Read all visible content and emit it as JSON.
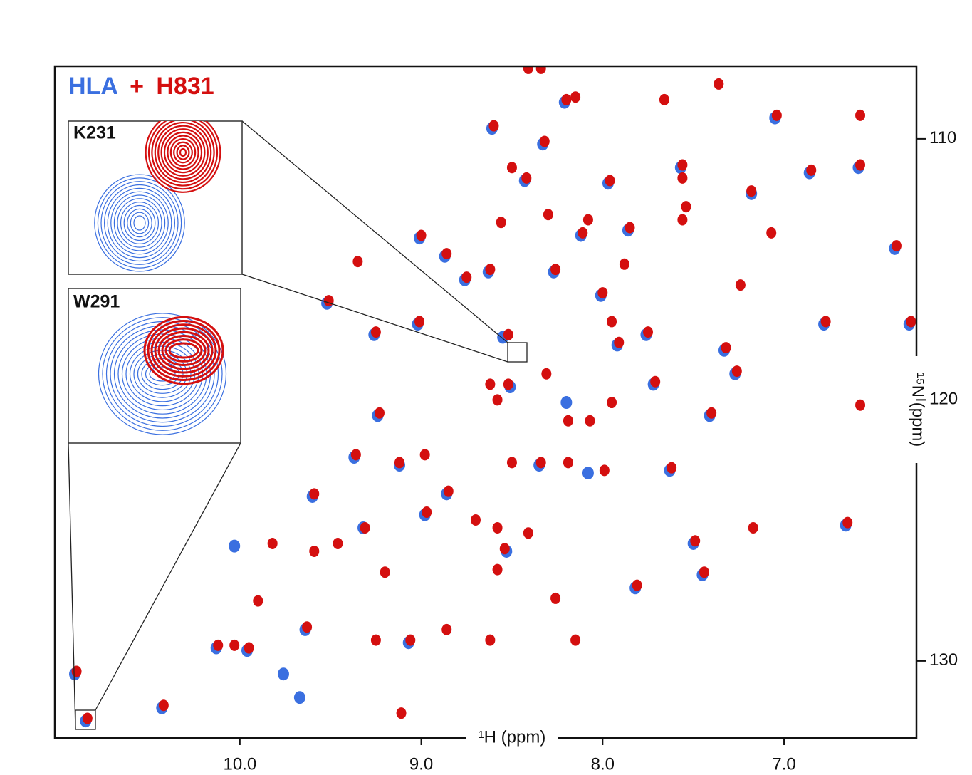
{
  "chart_data": {
    "type": "scatter",
    "legend_separator": "+",
    "x_label": "¹H (ppm)",
    "y_label": "¹⁵N (ppm)",
    "insets": [
      {
        "label": "K231"
      },
      {
        "label": "W291"
      }
    ],
    "xlim": [
      11.02,
      6.27
    ],
    "ylim": [
      132.95,
      107.22
    ],
    "xticks": [
      {
        "value": 10,
        "label": "10.0"
      },
      {
        "value": 9,
        "label": "9.0"
      },
      {
        "value": 8,
        "label": "8.0"
      },
      {
        "value": 7,
        "label": "7.0"
      }
    ],
    "yticks": [
      110,
      120,
      130
    ],
    "series": [
      {
        "name": "HLA",
        "color": "#3a6fe0",
        "x": [
          10.91,
          10.85,
          10.43,
          10.13,
          9.96,
          10.03,
          9.76,
          9.67,
          9.64,
          9.6,
          9.52,
          9.37,
          9.32,
          9.26,
          9.24,
          9.12,
          9.07,
          9.02,
          9.01,
          8.98,
          8.87,
          8.86,
          8.76,
          8.63,
          8.61,
          8.55,
          8.53,
          8.51,
          8.43,
          8.33,
          8.27,
          8.21,
          8.12,
          8.01,
          7.97,
          7.92,
          7.86,
          7.76,
          7.72,
          7.63,
          7.57,
          7.5,
          7.45,
          7.41,
          7.33,
          7.27,
          7.18,
          7.05,
          6.86,
          6.78,
          6.66,
          6.59,
          6.39,
          6.31,
          8.35,
          8.2,
          8.08,
          7.82
        ],
        "values": [
          130.5,
          132.3,
          131.8,
          129.5,
          129.6,
          125.6,
          130.5,
          131.4,
          128.8,
          123.7,
          116.3,
          122.2,
          124.9,
          117.5,
          120.6,
          122.5,
          129.3,
          117.1,
          113.8,
          124.4,
          114.5,
          123.6,
          115.4,
          115.1,
          109.6,
          117.6,
          125.8,
          119.5,
          111.6,
          110.2,
          115.1,
          108.6,
          113.7,
          116.0,
          111.7,
          117.9,
          113.5,
          117.5,
          119.4,
          122.7,
          111.1,
          125.5,
          126.7,
          120.6,
          118.1,
          119.0,
          112.1,
          109.2,
          111.3,
          117.1,
          124.8,
          111.1,
          114.2,
          117.1,
          122.5,
          120.1,
          122.8,
          127.2
        ]
      },
      {
        "name": "H831",
        "color": "#d40f0f",
        "x": [
          10.9,
          10.84,
          10.42,
          10.12,
          10.03,
          9.95,
          9.9,
          9.82,
          9.63,
          9.59,
          9.59,
          9.51,
          9.46,
          9.36,
          9.35,
          9.31,
          9.25,
          9.23,
          9.2,
          9.25,
          9.11,
          9.12,
          9.06,
          9.01,
          9.0,
          8.97,
          8.98,
          8.86,
          8.86,
          8.85,
          8.75,
          8.62,
          8.62,
          8.6,
          8.56,
          8.54,
          8.58,
          8.52,
          8.52,
          8.5,
          8.42,
          8.32,
          8.3,
          8.26,
          8.2,
          8.15,
          8.11,
          8.08,
          8.0,
          7.96,
          7.88,
          7.95,
          7.91,
          7.85,
          7.75,
          7.71,
          7.62,
          7.56,
          7.54,
          7.49,
          7.44,
          7.4,
          7.36,
          7.32,
          7.26,
          7.24,
          7.18,
          7.17,
          7.04,
          7.07,
          6.85,
          6.77,
          6.65,
          6.58,
          6.58,
          6.58,
          6.38,
          6.3,
          8.19,
          8.34,
          8.5,
          8.58,
          8.62,
          8.19,
          8.07,
          7.95,
          7.99,
          8.7,
          8.41,
          7.56,
          7.56,
          8.26,
          7.81,
          8.31,
          8.58,
          8.41,
          8.34,
          7.66,
          8.15
        ],
        "values": [
          130.4,
          132.2,
          131.7,
          129.4,
          129.4,
          129.5,
          127.7,
          125.5,
          128.7,
          123.6,
          125.8,
          116.2,
          125.5,
          122.1,
          114.7,
          124.9,
          117.4,
          120.5,
          126.6,
          129.2,
          132.0,
          122.4,
          129.2,
          117.0,
          113.7,
          124.3,
          122.1,
          114.4,
          128.8,
          123.5,
          115.3,
          115.0,
          129.2,
          109.5,
          113.2,
          125.7,
          126.5,
          117.5,
          119.4,
          111.1,
          111.5,
          110.1,
          112.9,
          115.0,
          108.5,
          108.4,
          113.6,
          113.1,
          115.9,
          111.6,
          114.8,
          117.0,
          117.8,
          113.4,
          117.4,
          119.3,
          122.6,
          111.0,
          112.6,
          125.4,
          126.6,
          120.5,
          107.9,
          118.0,
          118.9,
          115.6,
          112.0,
          124.9,
          109.1,
          113.6,
          111.2,
          117.0,
          124.7,
          111.0,
          109.1,
          120.2,
          114.1,
          117.0,
          122.4,
          122.4,
          122.4,
          120.0,
          119.4,
          120.8,
          120.8,
          120.1,
          122.7,
          124.6,
          125.1,
          111.5,
          113.1,
          127.6,
          127.1,
          119.0,
          124.9,
          107.3,
          107.3,
          108.5,
          129.2
        ]
      }
    ]
  }
}
